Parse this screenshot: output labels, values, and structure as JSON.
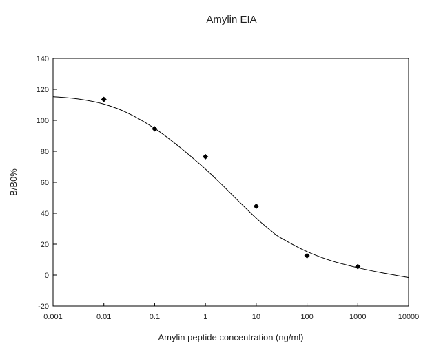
{
  "chart_data": {
    "type": "scatter",
    "title": "Amylin EIA",
    "xlabel": "Amylin peptide concentration  (ng/ml)",
    "ylabel": "B/B0%",
    "x_scale": "log",
    "xlim": [
      0.001,
      10000
    ],
    "ylim": [
      -20,
      140
    ],
    "x_ticks": [
      0.001,
      0.01,
      0.1,
      1,
      10,
      100,
      1000,
      10000
    ],
    "x_tick_labels": [
      "0.001",
      "0.01",
      "0.1",
      "1",
      "10",
      "100",
      "1000",
      "10000"
    ],
    "y_ticks": [
      -20,
      0,
      20,
      40,
      60,
      80,
      100,
      120,
      140
    ],
    "y_tick_labels": [
      "-20",
      "0",
      "20",
      "40",
      "60",
      "80",
      "100",
      "120",
      "140"
    ],
    "grid": false,
    "series": [
      {
        "kind": "points",
        "x": [
          0.01,
          0.1,
          1,
          10,
          100,
          1000
        ],
        "y": [
          113.5,
          94.5,
          76.5,
          44.5,
          12.5,
          5.5
        ],
        "color": "#000000",
        "marker": "diamond"
      },
      {
        "kind": "fitted-curve",
        "x": [
          0.001,
          0.003,
          0.01,
          0.03,
          0.1,
          0.3,
          1,
          2,
          3,
          5,
          10,
          20,
          30,
          100,
          300,
          1000,
          3000,
          10000
        ],
        "y": [
          115.3,
          113.9,
          110.5,
          104.6,
          94.8,
          83.1,
          68.5,
          59.2,
          53.5,
          46.3,
          36.8,
          28.4,
          24.2,
          15.2,
          9.3,
          4.8,
          1.5,
          -1.6
        ],
        "color": "#000000"
      }
    ]
  }
}
